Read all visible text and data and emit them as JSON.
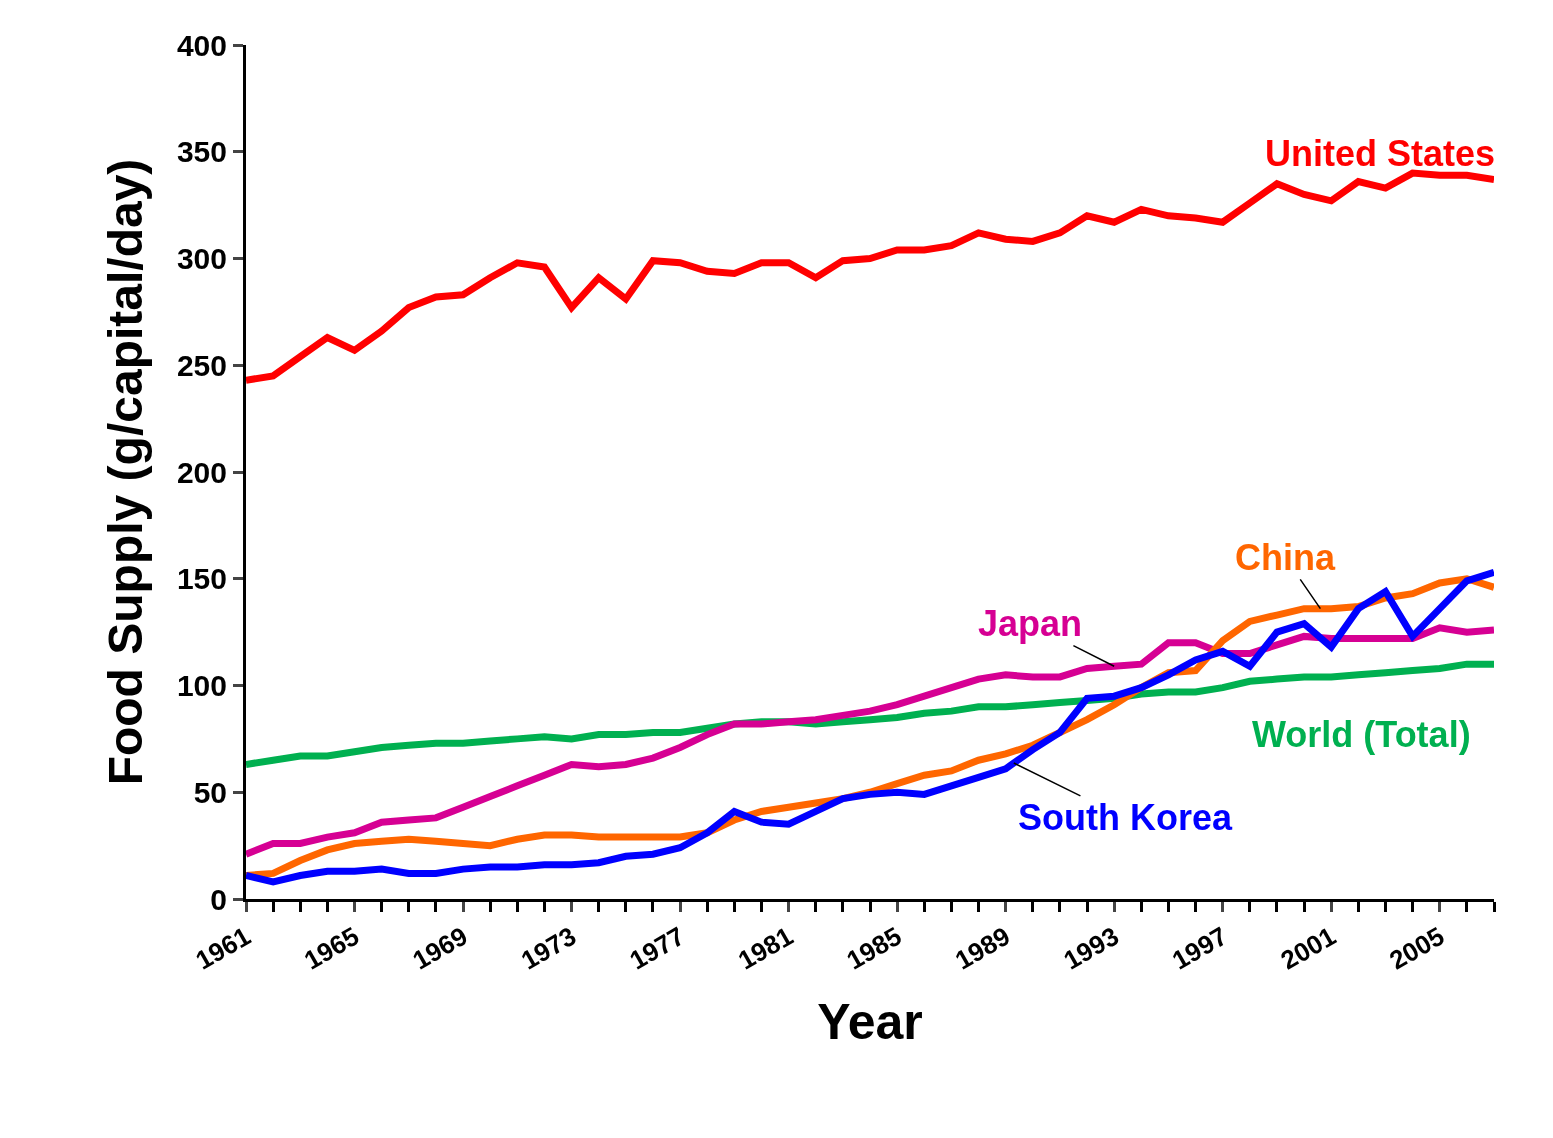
{
  "chart_data": {
    "type": "line",
    "xlabel": "Year",
    "ylabel": "Food Supply (g/capital/day)",
    "x": [
      1961,
      1962,
      1963,
      1964,
      1965,
      1966,
      1967,
      1968,
      1969,
      1970,
      1971,
      1972,
      1973,
      1974,
      1975,
      1976,
      1977,
      1978,
      1979,
      1980,
      1981,
      1982,
      1983,
      1984,
      1985,
      1986,
      1987,
      1988,
      1989,
      1990,
      1991,
      1992,
      1993,
      1994,
      1995,
      1996,
      1997,
      1998,
      1999,
      2000,
      2001,
      2002,
      2003,
      2004,
      2005,
      2006,
      2007
    ],
    "xlim": [
      1961,
      2007
    ],
    "xticks": [
      1961,
      1965,
      1969,
      1973,
      1977,
      1981,
      1985,
      1989,
      1993,
      1997,
      2001,
      2005
    ],
    "ylim": [
      0,
      400
    ],
    "yticks": [
      0,
      50,
      100,
      150,
      200,
      250,
      300,
      350,
      400
    ],
    "legend": false,
    "marker": "none",
    "line_style": "solid",
    "series": [
      {
        "name": "United States",
        "color": "#ff0000",
        "values": [
          243,
          245,
          254,
          263,
          257,
          266,
          277,
          282,
          283,
          291,
          298,
          296,
          277,
          291,
          281,
          299,
          298,
          294,
          293,
          298,
          298,
          291,
          299,
          300,
          304,
          304,
          306,
          312,
          309,
          308,
          312,
          320,
          317,
          323,
          320,
          319,
          317,
          326,
          335,
          330,
          327,
          336,
          333,
          340,
          339,
          339,
          337
        ]
      },
      {
        "name": "World (Total)",
        "color": "#00b050",
        "values": [
          63,
          65,
          67,
          67,
          69,
          71,
          72,
          73,
          73,
          74,
          75,
          76,
          75,
          77,
          77,
          78,
          78,
          80,
          82,
          83,
          83,
          82,
          83,
          84,
          85,
          87,
          88,
          90,
          90,
          91,
          92,
          93,
          94,
          96,
          97,
          97,
          99,
          102,
          103,
          104,
          104,
          105,
          106,
          107,
          108,
          110,
          110
        ]
      },
      {
        "name": "Japan",
        "color": "#d60093",
        "values": [
          21,
          26,
          26,
          29,
          31,
          36,
          37,
          38,
          43,
          48,
          53,
          58,
          63,
          62,
          63,
          66,
          71,
          77,
          82,
          82,
          83,
          84,
          86,
          88,
          91,
          95,
          99,
          103,
          105,
          104,
          104,
          108,
          109,
          110,
          120,
          120,
          115,
          115,
          119,
          123,
          122,
          122,
          122,
          122,
          127,
          125,
          126
        ]
      },
      {
        "name": "China",
        "color": "#ff6600",
        "values": [
          11,
          12,
          18,
          23,
          26,
          27,
          28,
          27,
          26,
          25,
          28,
          30,
          30,
          29,
          29,
          29,
          29,
          31,
          37,
          41,
          43,
          45,
          47,
          50,
          54,
          58,
          60,
          65,
          68,
          72,
          78,
          84,
          91,
          99,
          106,
          107,
          121,
          130,
          133,
          136,
          136,
          137,
          141,
          143,
          148,
          150,
          146
        ]
      },
      {
        "name": "South Korea",
        "color": "#0000ff",
        "values": [
          11,
          8,
          11,
          13,
          13,
          14,
          12,
          12,
          14,
          15,
          15,
          16,
          16,
          17,
          20,
          21,
          24,
          31,
          41,
          36,
          35,
          41,
          47,
          49,
          50,
          49,
          53,
          57,
          61,
          70,
          78,
          94,
          95,
          99,
          105,
          112,
          116,
          109,
          125,
          129,
          118,
          136,
          144,
          123,
          136,
          149,
          153
        ]
      }
    ]
  }
}
